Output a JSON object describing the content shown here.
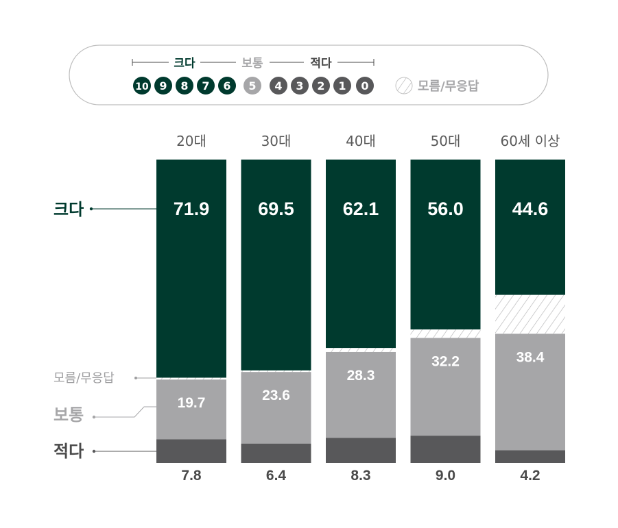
{
  "legend": {
    "group_large": "크다",
    "group_mid": "보통",
    "group_small": "적다",
    "scale": [
      {
        "n": "10",
        "color": "#003a2e"
      },
      {
        "n": "9",
        "color": "#003a2e"
      },
      {
        "n": "8",
        "color": "#003a2e"
      },
      {
        "n": "7",
        "color": "#003a2e"
      },
      {
        "n": "6",
        "color": "#003a2e"
      },
      {
        "n": "5",
        "color": "#a6a6a8"
      },
      {
        "n": "4",
        "color": "#58585a"
      },
      {
        "n": "3",
        "color": "#58585a"
      },
      {
        "n": "2",
        "color": "#58585a"
      },
      {
        "n": "1",
        "color": "#58585a"
      },
      {
        "n": "0",
        "color": "#58585a"
      }
    ],
    "dontknow": "모름/무응답"
  },
  "side_labels": {
    "large": "크다",
    "dontknow": "모름/무응답",
    "mid": "보통",
    "small": "적다"
  },
  "chart_data": {
    "type": "bar",
    "stacked": true,
    "categories": [
      "20대",
      "30대",
      "40대",
      "50대",
      "60세 이상"
    ],
    "series": [
      {
        "name": "적다",
        "values": [
          7.8,
          6.4,
          8.3,
          9.0,
          4.2
        ],
        "color": "#58585a"
      },
      {
        "name": "보통",
        "values": [
          19.7,
          23.6,
          28.3,
          32.2,
          38.4
        ],
        "color": "#a6a6a8"
      },
      {
        "name": "모름/무응답",
        "values": [
          0.6,
          0.5,
          1.3,
          2.8,
          12.8
        ],
        "pattern": "hatch"
      },
      {
        "name": "크다",
        "values": [
          71.9,
          69.5,
          62.1,
          56.0,
          44.6
        ],
        "color": "#003a2e"
      }
    ],
    "data_labels_shown": {
      "크다": [
        "71.9",
        "69.5",
        "62.1",
        "56.0",
        "44.6"
      ],
      "보통": [
        "19.7",
        "23.6",
        "28.3",
        "32.2",
        "38.4"
      ],
      "적다": [
        "7.8",
        "6.4",
        "8.3",
        "9.0",
        "4.2"
      ]
    },
    "ylim": [
      0,
      100
    ],
    "grid": false,
    "legend_position": "top"
  },
  "colors": {
    "large": "#003a2e",
    "mid": "#a6a6a8",
    "small": "#58585a",
    "hatch_line": "#b9b9bb",
    "text_gray": "#5a5a5a",
    "label_light": "#9d9d9f"
  }
}
